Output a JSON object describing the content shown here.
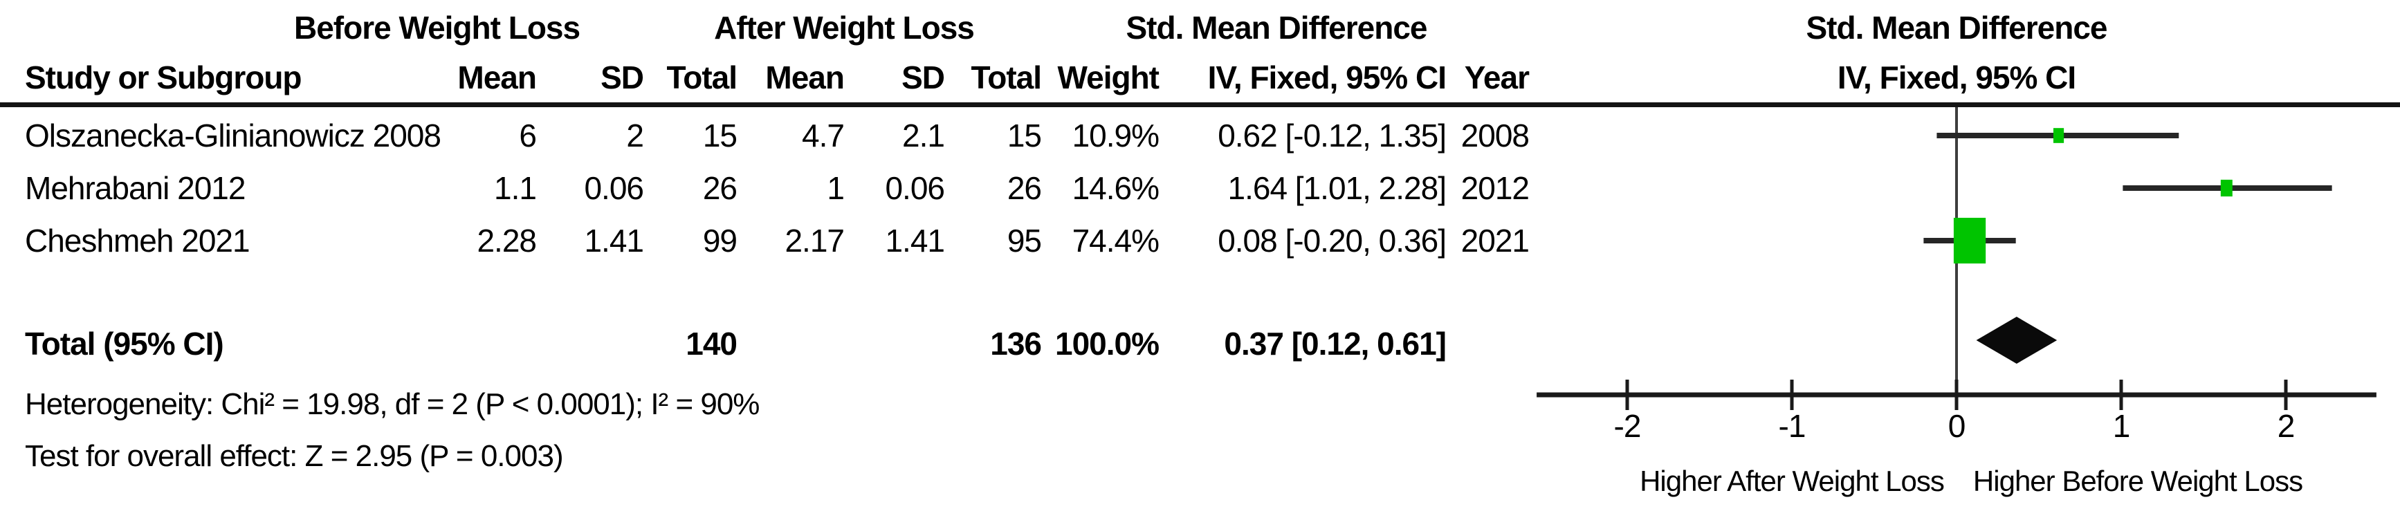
{
  "table": {
    "group_headers": {
      "before": "Before Weight Loss",
      "after": "After Weight Loss",
      "smd": "Std. Mean Difference"
    },
    "columns": {
      "study": "Study or Subgroup",
      "mean": "Mean",
      "sd": "SD",
      "total": "Total",
      "weight": "Weight",
      "ci": "IV, Fixed, 95% CI",
      "year": "Year"
    },
    "rows": [
      {
        "study": "Olszanecka-Glinianowicz 2008",
        "mean1": "6",
        "sd1": "2",
        "total1": "15",
        "mean2": "4.7",
        "sd2": "2.1",
        "total2": "15",
        "weight": "10.9%",
        "ci": "0.62 [-0.12, 1.35]",
        "year": "2008"
      },
      {
        "study": "Mehrabani 2012",
        "mean1": "1.1",
        "sd1": "0.06",
        "total1": "26",
        "mean2": "1",
        "sd2": "0.06",
        "total2": "26",
        "weight": "14.6%",
        "ci": "1.64 [1.01, 2.28]",
        "year": "2012"
      },
      {
        "study": "Cheshmeh 2021",
        "mean1": "2.28",
        "sd1": "1.41",
        "total1": "99",
        "mean2": "2.17",
        "sd2": "1.41",
        "total2": "95",
        "weight": "74.4%",
        "ci": "0.08 [-0.20, 0.36]",
        "year": "2021"
      }
    ],
    "total_row": {
      "label": "Total (95% CI)",
      "total1": "140",
      "total2": "136",
      "weight": "100.0%",
      "ci": "0.37 [0.12, 0.61]"
    },
    "footnotes": {
      "heterogeneity": "Heterogeneity: Chi² = 19.98, df = 2 (P < 0.0001); I² = 90%",
      "overall_effect": "Test for overall effect: Z = 2.95 (P = 0.003)"
    }
  },
  "plot": {
    "header_line1": "Std. Mean Difference",
    "header_line2": "IV, Fixed, 95% CI",
    "axis_label_left": "Higher After Weight Loss",
    "axis_label_right": "Higher Before Weight Loss",
    "marker_color": "#00C400",
    "ci_line_color": "#262626",
    "axis_color": "#1a1a1a",
    "zero_line_color": "#3d3d3d",
    "diamond_color": "#0a0a0a"
  },
  "chart_data": {
    "type": "forest",
    "effect_measure": "Std. Mean Difference (IV, Fixed, 95% CI)",
    "x_ticks": [
      -2,
      -1,
      0,
      1,
      2
    ],
    "xlim": [
      -2.55,
      2.55
    ],
    "studies": [
      {
        "label": "Olszanecka-Glinianowicz 2008",
        "year": 2008,
        "smd": 0.62,
        "ci_low": -0.12,
        "ci_high": 1.35,
        "weight_pct": 10.9
      },
      {
        "label": "Mehrabani 2012",
        "year": 2012,
        "smd": 1.64,
        "ci_low": 1.01,
        "ci_high": 2.28,
        "weight_pct": 14.6
      },
      {
        "label": "Cheshmeh 2021",
        "year": 2021,
        "smd": 0.08,
        "ci_low": -0.2,
        "ci_high": 0.36,
        "weight_pct": 74.4
      }
    ],
    "total": {
      "label": "Total (95% CI)",
      "smd": 0.37,
      "ci_low": 0.12,
      "ci_high": 0.61,
      "weight_pct": 100.0,
      "total_before": 140,
      "total_after": 136
    },
    "heterogeneity": {
      "chi2": 19.98,
      "df": 2,
      "p": "< 0.0001",
      "i2_pct": 90
    },
    "overall_effect": {
      "z": 2.95,
      "p": "= 0.003"
    },
    "direction_labels": {
      "left": "Higher After Weight Loss",
      "right": "Higher Before Weight Loss"
    }
  }
}
